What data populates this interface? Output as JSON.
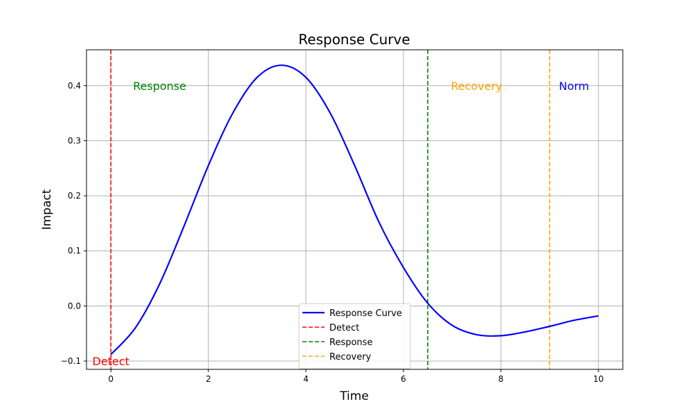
{
  "chart_data": {
    "type": "line",
    "title": "Response Curve",
    "xlabel": "Time",
    "ylabel": "Impact",
    "xlim": [
      -0.5,
      10.5
    ],
    "ylim": [
      -0.115,
      0.465
    ],
    "xticks": [
      0,
      2,
      4,
      6,
      8,
      10
    ],
    "yticks": [
      -0.1,
      0.0,
      0.1,
      0.2,
      0.3,
      0.4
    ],
    "xtick_labels": [
      "0",
      "2",
      "4",
      "6",
      "8",
      "10"
    ],
    "ytick_labels": [
      "−0.1",
      "0.0",
      "0.1",
      "0.2",
      "0.3",
      "0.4"
    ],
    "grid": true,
    "legend_position": "lower-center",
    "series": [
      {
        "name": "Response Curve",
        "color": "#0000ff",
        "x": [
          0,
          0.5,
          1,
          1.5,
          2,
          2.5,
          3,
          3.5,
          4,
          4.5,
          5,
          5.5,
          6,
          6.5,
          7,
          7.5,
          8,
          8.5,
          9,
          9.5,
          10
        ],
        "y": [
          -0.088,
          -0.04,
          0.04,
          0.145,
          0.255,
          0.35,
          0.415,
          0.437,
          0.415,
          0.35,
          0.255,
          0.152,
          0.07,
          0.005,
          -0.035,
          -0.052,
          -0.054,
          -0.047,
          -0.037,
          -0.026,
          -0.018
        ]
      }
    ],
    "vlines": [
      {
        "name": "Detect",
        "x": 0,
        "color": "#ff0000"
      },
      {
        "name": "Response",
        "x": 6.5,
        "color": "#008000"
      },
      {
        "name": "Recovery",
        "x": 9,
        "color": "#ffa500"
      }
    ],
    "annotations": [
      {
        "text": "Detect",
        "x": 0,
        "y": -0.1,
        "color": "#ff0000"
      },
      {
        "text": "Response",
        "x": 1,
        "y": 0.4,
        "color": "#008000"
      },
      {
        "text": "Recovery",
        "x": 7.5,
        "y": 0.4,
        "color": "#ffa500"
      },
      {
        "text": "Norm",
        "x": 9.5,
        "y": 0.4,
        "color": "#0000ff"
      }
    ]
  }
}
